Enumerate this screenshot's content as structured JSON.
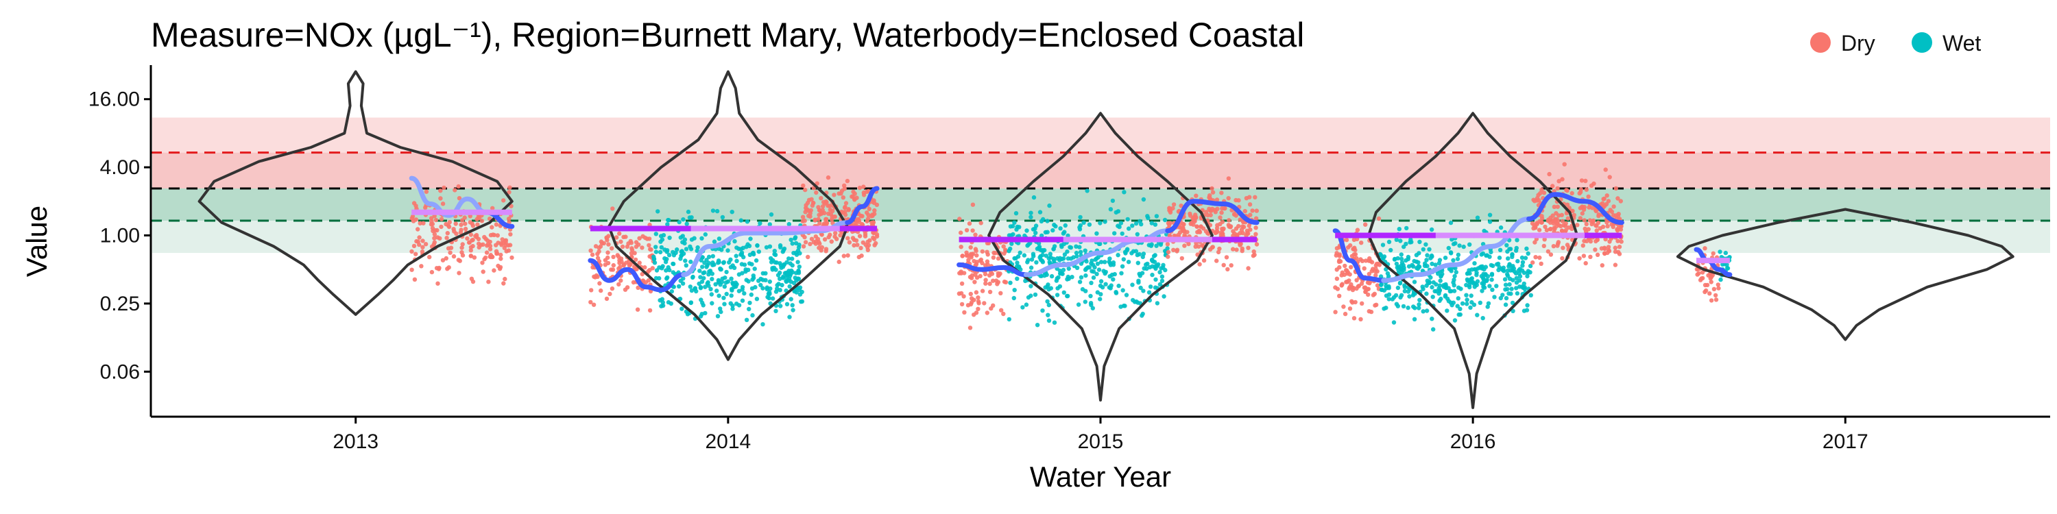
{
  "chart_data": {
    "type": "scatter",
    "title": "Measure=NOx (µgL⁻¹), Region=Burnett Mary, Waterbody=Enclosed Coastal",
    "xlabel": "Water Year",
    "ylabel": "Value",
    "y_scale": "log2",
    "ylim": [
      0.025,
      32
    ],
    "xlim": [
      2012.45,
      2017.55
    ],
    "x_ticks": [
      2013,
      2014,
      2015,
      2016,
      2017
    ],
    "y_ticks": [
      {
        "value": 0.0625,
        "label": "0.06"
      },
      {
        "value": 0.25,
        "label": "0.25"
      },
      {
        "value": 1,
        "label": "1.00"
      },
      {
        "value": 4,
        "label": "4.00"
      },
      {
        "value": 16,
        "label": "16.00"
      }
    ],
    "grid": false,
    "legend": {
      "position": "top-right",
      "entries": [
        {
          "name": "Dry",
          "color": "#F8766D"
        },
        {
          "name": "Wet",
          "color": "#00BFC4"
        }
      ]
    },
    "colors": {
      "dry": "#F8766D",
      "wet": "#00BFC4",
      "band_red": "#F8A5A5",
      "band_green": "#8CC7B0",
      "line_red": "#E31A1C",
      "line_black": "#000000",
      "line_green": "#006D3C",
      "smooth_dark": "#3D5AFE",
      "smooth_light": "#8EA4FF",
      "mean_line": "#B026FF",
      "mean_light": "#D88BFF",
      "violin": "#333333"
    },
    "reference_bands": [
      {
        "from": 0.7,
        "to": 1.35,
        "color": "#E2F0EA"
      },
      {
        "from": 1.35,
        "to": 2.6,
        "color": "#B7DCCB"
      },
      {
        "from": 2.6,
        "to": 5.4,
        "color": "#F7C6C6"
      },
      {
        "from": 5.4,
        "to": 11,
        "color": "#FBDDDD"
      }
    ],
    "reference_lines": [
      {
        "value": 5.4,
        "color": "#E31A1C",
        "style": "dashed"
      },
      {
        "value": 2.6,
        "color": "#000000",
        "style": "dashed"
      },
      {
        "value": 1.35,
        "color": "#006D3C",
        "style": "dashed"
      }
    ],
    "violins": [
      {
        "x": 2013.0,
        "bottom": 0.2,
        "top": 28,
        "width_at": [
          [
            0.2,
            0.0
          ],
          [
            0.3,
            0.06
          ],
          [
            0.4,
            0.1
          ],
          [
            0.55,
            0.14
          ],
          [
            0.8,
            0.22
          ],
          [
            1.3,
            0.36
          ],
          [
            2.0,
            0.42
          ],
          [
            3.0,
            0.38
          ],
          [
            4.5,
            0.26
          ],
          [
            6,
            0.12
          ],
          [
            8,
            0.03
          ],
          [
            14,
            0.015
          ],
          [
            22,
            0.02
          ],
          [
            28,
            0.0
          ]
        ]
      },
      {
        "x": 2014.0,
        "bottom": 0.08,
        "top": 28,
        "width_at": [
          [
            0.08,
            0.0
          ],
          [
            0.12,
            0.03
          ],
          [
            0.2,
            0.09
          ],
          [
            0.4,
            0.2
          ],
          [
            0.8,
            0.3
          ],
          [
            1.2,
            0.32
          ],
          [
            2.0,
            0.28
          ],
          [
            4.0,
            0.18
          ],
          [
            7,
            0.08
          ],
          [
            12,
            0.03
          ],
          [
            20,
            0.02
          ],
          [
            28,
            0.0
          ]
        ]
      },
      {
        "x": 2015.0,
        "bottom": 0.035,
        "top": 12,
        "width_at": [
          [
            0.035,
            0.0
          ],
          [
            0.07,
            0.01
          ],
          [
            0.15,
            0.05
          ],
          [
            0.3,
            0.14
          ],
          [
            0.6,
            0.26
          ],
          [
            1.0,
            0.3
          ],
          [
            1.6,
            0.27
          ],
          [
            3.0,
            0.18
          ],
          [
            5,
            0.1
          ],
          [
            8,
            0.04
          ],
          [
            12,
            0.0
          ]
        ]
      },
      {
        "x": 2016.0,
        "bottom": 0.03,
        "top": 12,
        "width_at": [
          [
            0.03,
            0.0
          ],
          [
            0.06,
            0.01
          ],
          [
            0.15,
            0.05
          ],
          [
            0.3,
            0.14
          ],
          [
            0.6,
            0.25
          ],
          [
            1.0,
            0.28
          ],
          [
            1.6,
            0.26
          ],
          [
            3.0,
            0.18
          ],
          [
            5,
            0.1
          ],
          [
            8,
            0.04
          ],
          [
            12,
            0.0
          ]
        ]
      },
      {
        "x": 2017.0,
        "bottom": 0.12,
        "top": 1.7,
        "width_at": [
          [
            0.12,
            0.0
          ],
          [
            0.16,
            0.03
          ],
          [
            0.22,
            0.09
          ],
          [
            0.35,
            0.22
          ],
          [
            0.5,
            0.38
          ],
          [
            0.65,
            0.45
          ],
          [
            0.8,
            0.42
          ],
          [
            1.0,
            0.33
          ],
          [
            1.3,
            0.18
          ],
          [
            1.7,
            0.0
          ]
        ]
      }
    ],
    "point_segments": [
      {
        "season": "dry",
        "x_from": 2013.15,
        "x_to": 2013.42,
        "center": 1.0,
        "spread": 1.6,
        "count": 220
      },
      {
        "season": "dry",
        "x_from": 2013.63,
        "x_to": 2013.8,
        "center": 0.6,
        "spread": 1.5,
        "count": 150
      },
      {
        "season": "wet",
        "x_from": 2013.8,
        "x_to": 2014.2,
        "center": 0.5,
        "spread": 1.8,
        "count": 420
      },
      {
        "season": "dry",
        "x_from": 2014.2,
        "x_to": 2014.4,
        "center": 1.4,
        "spread": 1.4,
        "count": 260
      },
      {
        "season": "dry",
        "x_from": 2014.62,
        "x_to": 2014.75,
        "center": 0.5,
        "spread": 1.7,
        "count": 140
      },
      {
        "season": "wet",
        "x_from": 2014.75,
        "x_to": 2015.18,
        "center": 0.6,
        "spread": 1.9,
        "count": 420
      },
      {
        "season": "dry",
        "x_from": 2015.18,
        "x_to": 2015.42,
        "center": 1.2,
        "spread": 1.3,
        "count": 270
      },
      {
        "season": "dry",
        "x_from": 2015.63,
        "x_to": 2015.75,
        "center": 0.5,
        "spread": 1.7,
        "count": 140
      },
      {
        "season": "wet",
        "x_from": 2015.75,
        "x_to": 2016.16,
        "center": 0.45,
        "spread": 1.6,
        "count": 420
      },
      {
        "season": "dry",
        "x_from": 2016.16,
        "x_to": 2016.4,
        "center": 1.3,
        "spread": 1.5,
        "count": 280
      },
      {
        "season": "dry",
        "x_from": 2016.6,
        "x_to": 2016.66,
        "center": 0.5,
        "spread": 1.0,
        "count": 45
      },
      {
        "season": "wet",
        "x_from": 2016.66,
        "x_to": 2016.69,
        "center": 0.55,
        "spread": 0.5,
        "count": 20
      }
    ],
    "smooth_lines": [
      {
        "color": "#8EA4FF",
        "points": [
          [
            2013.15,
            3.2
          ],
          [
            2013.2,
            1.9
          ],
          [
            2013.25,
            1.5
          ],
          [
            2013.3,
            2.1
          ],
          [
            2013.35,
            1.6
          ],
          [
            2013.42,
            1.2
          ]
        ]
      },
      {
        "color": "#3D5AFE",
        "points": [
          [
            2013.35,
            1.6
          ],
          [
            2013.42,
            1.2
          ]
        ]
      },
      {
        "color": "#3D5AFE",
        "points": [
          [
            2013.63,
            0.6
          ],
          [
            2013.68,
            0.4
          ],
          [
            2013.73,
            0.5
          ],
          [
            2013.78,
            0.35
          ],
          [
            2013.82,
            0.33
          ],
          [
            2013.88,
            0.45
          ]
        ]
      },
      {
        "color": "#8EA4FF",
        "points": [
          [
            2013.88,
            0.45
          ],
          [
            2013.95,
            0.8
          ],
          [
            2014.05,
            1.05
          ],
          [
            2014.15,
            1.05
          ],
          [
            2014.25,
            1.1
          ],
          [
            2014.32,
            1.3
          ]
        ]
      },
      {
        "color": "#3D5AFE",
        "points": [
          [
            2014.32,
            1.3
          ],
          [
            2014.36,
            1.8
          ],
          [
            2014.4,
            2.6
          ]
        ]
      },
      {
        "color": "#3D5AFE",
        "points": [
          [
            2014.62,
            0.55
          ],
          [
            2014.68,
            0.5
          ],
          [
            2014.74,
            0.52
          ],
          [
            2014.8,
            0.45
          ]
        ]
      },
      {
        "color": "#8EA4FF",
        "points": [
          [
            2014.8,
            0.45
          ],
          [
            2014.9,
            0.55
          ],
          [
            2015.0,
            0.7
          ],
          [
            2015.1,
            0.9
          ],
          [
            2015.18,
            1.1
          ]
        ]
      },
      {
        "color": "#3D5AFE",
        "points": [
          [
            2015.18,
            1.1
          ],
          [
            2015.25,
            2.0
          ],
          [
            2015.33,
            1.9
          ],
          [
            2015.42,
            1.3
          ]
        ]
      },
      {
        "color": "#3D5AFE",
        "points": [
          [
            2015.63,
            1.1
          ],
          [
            2015.67,
            0.6
          ],
          [
            2015.71,
            0.42
          ],
          [
            2015.76,
            0.4
          ]
        ]
      },
      {
        "color": "#8EA4FF",
        "points": [
          [
            2015.76,
            0.4
          ],
          [
            2015.85,
            0.45
          ],
          [
            2015.95,
            0.55
          ],
          [
            2016.05,
            0.8
          ],
          [
            2016.15,
            1.4
          ]
        ]
      },
      {
        "color": "#3D5AFE",
        "points": [
          [
            2016.15,
            1.4
          ],
          [
            2016.22,
            2.3
          ],
          [
            2016.3,
            2.0
          ],
          [
            2016.4,
            1.3
          ]
        ]
      },
      {
        "color": "#3D5AFE",
        "points": [
          [
            2016.6,
            0.75
          ],
          [
            2016.63,
            0.6
          ],
          [
            2016.66,
            0.5
          ],
          [
            2016.69,
            0.45
          ]
        ]
      }
    ],
    "mean_lines": [
      {
        "x_from": 2013.15,
        "x_to": 2013.42,
        "value": 1.6,
        "color": "#D88BFF"
      },
      {
        "x_from": 2013.63,
        "x_to": 2014.4,
        "value": 1.15,
        "color": "#B026FF"
      },
      {
        "x_from": 2013.9,
        "x_to": 2014.3,
        "value": 1.15,
        "color": "#D88BFF"
      },
      {
        "x_from": 2014.62,
        "x_to": 2015.42,
        "value": 0.92,
        "color": "#B026FF"
      },
      {
        "x_from": 2014.9,
        "x_to": 2015.3,
        "value": 0.92,
        "color": "#D88BFF"
      },
      {
        "x_from": 2015.63,
        "x_to": 2016.4,
        "value": 1.0,
        "color": "#B026FF"
      },
      {
        "x_from": 2015.9,
        "x_to": 2016.3,
        "value": 1.0,
        "color": "#D88BFF"
      },
      {
        "x_from": 2016.6,
        "x_to": 2016.69,
        "value": 0.6,
        "color": "#D88BFF"
      }
    ]
  }
}
